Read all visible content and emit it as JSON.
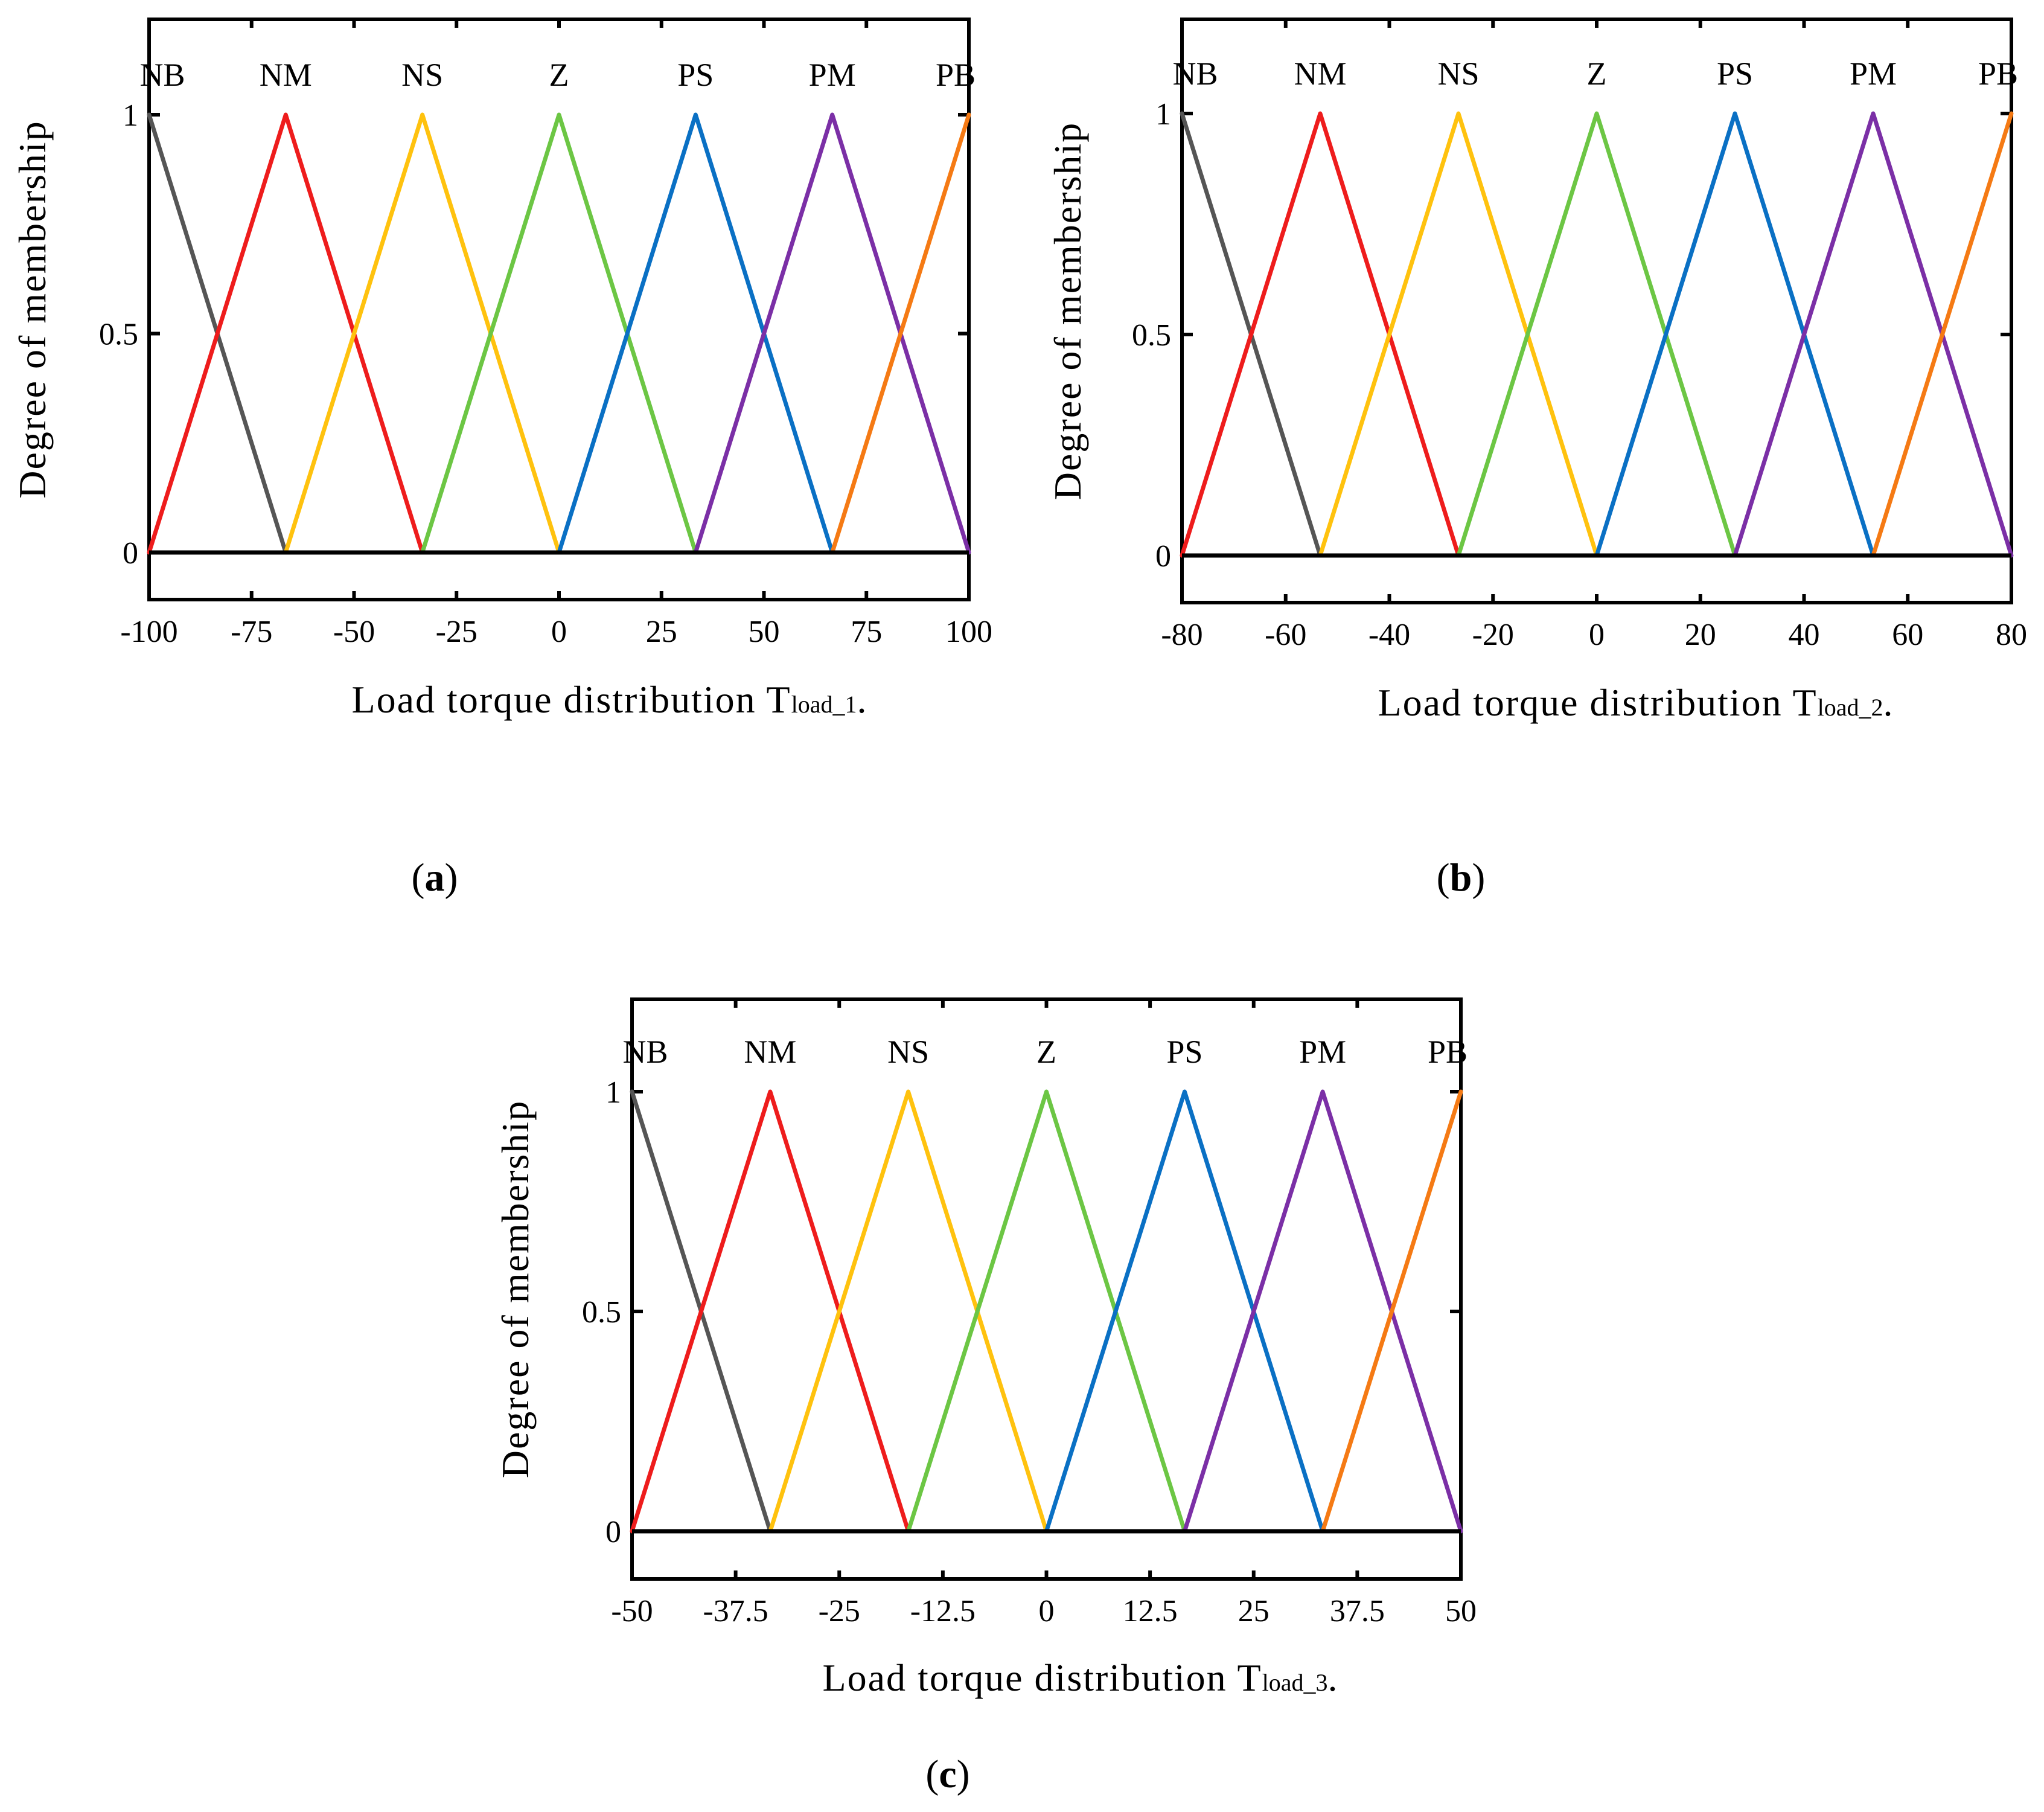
{
  "colors": {
    "NB": "#555555",
    "NM": "#ee1c1c",
    "NS": "#ffc20e",
    "Z": "#6cc644",
    "PS": "#0a70c4",
    "PM": "#7b2fa6",
    "PB": "#f57a14"
  },
  "chart_data": [
    {
      "id": "a",
      "type": "line",
      "caption": {
        "open": "(",
        "letter": "a",
        "close": ")"
      },
      "xlabel": "Load torque distribution T",
      "xlabel_sub": "load_1",
      "xlabel_suffix": ".",
      "ylabel": "Degree of membership",
      "xlim": [
        -100,
        100
      ],
      "ylim": [
        -0.11,
        1.22
      ],
      "xticks": [
        -100,
        -75,
        -50,
        -25,
        0,
        25,
        50,
        75,
        100
      ],
      "xtick_labels": [
        "-100",
        "-75",
        "-50",
        "-25",
        "0",
        "25",
        "50",
        "75",
        "100"
      ],
      "yticks": [
        0,
        0.5,
        1
      ],
      "ytick_labels": [
        "0",
        "0.5",
        "1"
      ],
      "terms": [
        "NB",
        "NM",
        "NS",
        "Z",
        "PS",
        "PM",
        "PB"
      ],
      "term_centers": [
        -100,
        -66.67,
        -33.33,
        0,
        33.33,
        66.67,
        100
      ],
      "series": [
        {
          "name": "NB",
          "x": [
            -100,
            -66.67
          ],
          "y": [
            1,
            0
          ]
        },
        {
          "name": "NM",
          "x": [
            -100,
            -66.67,
            -33.33
          ],
          "y": [
            0,
            1,
            0
          ]
        },
        {
          "name": "NS",
          "x": [
            -66.67,
            -33.33,
            0
          ],
          "y": [
            0,
            1,
            0
          ]
        },
        {
          "name": "Z",
          "x": [
            -33.33,
            0,
            33.33
          ],
          "y": [
            0,
            1,
            0
          ]
        },
        {
          "name": "PS",
          "x": [
            0,
            33.33,
            66.67
          ],
          "y": [
            0,
            1,
            0
          ]
        },
        {
          "name": "PM",
          "x": [
            33.33,
            66.67,
            100
          ],
          "y": [
            0,
            1,
            0
          ]
        },
        {
          "name": "PB",
          "x": [
            66.67,
            100
          ],
          "y": [
            0,
            1
          ]
        }
      ]
    },
    {
      "id": "b",
      "type": "line",
      "caption": {
        "open": "(",
        "letter": "b",
        "close": ")"
      },
      "xlabel": "Load torque distribution T",
      "xlabel_sub": "load_2",
      "xlabel_suffix": ".",
      "ylabel": "Degree of membership",
      "xlim": [
        -80,
        80
      ],
      "ylim": [
        -0.11,
        1.22
      ],
      "xticks": [
        -80,
        -60,
        -40,
        -20,
        0,
        20,
        40,
        60,
        80
      ],
      "xtick_labels": [
        "-80",
        "-60",
        "-40",
        "-20",
        "0",
        "20",
        "40",
        "60",
        "80"
      ],
      "yticks": [
        0,
        0.5,
        1
      ],
      "ytick_labels": [
        "0",
        "0.5",
        "1"
      ],
      "terms": [
        "NB",
        "NM",
        "NS",
        "Z",
        "PS",
        "PM",
        "PB"
      ],
      "term_centers": [
        -80,
        -53.33,
        -26.67,
        0,
        26.67,
        53.33,
        80
      ],
      "series": [
        {
          "name": "NB",
          "x": [
            -80,
            -53.33
          ],
          "y": [
            1,
            0
          ]
        },
        {
          "name": "NM",
          "x": [
            -80,
            -53.33,
            -26.67
          ],
          "y": [
            0,
            1,
            0
          ]
        },
        {
          "name": "NS",
          "x": [
            -53.33,
            -26.67,
            0
          ],
          "y": [
            0,
            1,
            0
          ]
        },
        {
          "name": "Z",
          "x": [
            -26.67,
            0,
            26.67
          ],
          "y": [
            0,
            1,
            0
          ]
        },
        {
          "name": "PS",
          "x": [
            0,
            26.67,
            53.33
          ],
          "y": [
            0,
            1,
            0
          ]
        },
        {
          "name": "PM",
          "x": [
            26.67,
            53.33,
            80
          ],
          "y": [
            0,
            1,
            0
          ]
        },
        {
          "name": "PB",
          "x": [
            53.33,
            80
          ],
          "y": [
            0,
            1
          ]
        }
      ]
    },
    {
      "id": "c",
      "type": "line",
      "caption": {
        "open": "(",
        "letter": "c",
        "close": ")"
      },
      "xlabel": "Load torque distribution T",
      "xlabel_sub": "load_3",
      "xlabel_suffix": ".",
      "ylabel": "Degree of membership",
      "xlim": [
        -50,
        50
      ],
      "ylim": [
        -0.11,
        1.22
      ],
      "xticks": [
        -50,
        -37.5,
        -25,
        -12.5,
        0,
        12.5,
        25,
        37.5,
        50
      ],
      "xtick_labels": [
        "-50",
        "-37.5",
        "-25",
        "-12.5",
        "0",
        "12.5",
        "25",
        "37.5",
        "50"
      ],
      "yticks": [
        0,
        0.5,
        1
      ],
      "ytick_labels": [
        "0",
        "0.5",
        "1"
      ],
      "terms": [
        "NB",
        "NM",
        "NS",
        "Z",
        "PS",
        "PM",
        "PB"
      ],
      "term_centers": [
        -50,
        -33.33,
        -16.67,
        0,
        16.67,
        33.33,
        50
      ],
      "series": [
        {
          "name": "NB",
          "x": [
            -50,
            -33.33
          ],
          "y": [
            1,
            0
          ]
        },
        {
          "name": "NM",
          "x": [
            -50,
            -33.33,
            -16.67
          ],
          "y": [
            0,
            1,
            0
          ]
        },
        {
          "name": "NS",
          "x": [
            -33.33,
            -16.67,
            0
          ],
          "y": [
            0,
            1,
            0
          ]
        },
        {
          "name": "Z",
          "x": [
            -16.67,
            0,
            16.67
          ],
          "y": [
            0,
            1,
            0
          ]
        },
        {
          "name": "PS",
          "x": [
            0,
            16.67,
            33.33
          ],
          "y": [
            0,
            1,
            0
          ]
        },
        {
          "name": "PM",
          "x": [
            16.67,
            33.33,
            50
          ],
          "y": [
            0,
            1,
            0
          ]
        },
        {
          "name": "PB",
          "x": [
            33.33,
            50
          ],
          "y": [
            0,
            1
          ]
        }
      ]
    }
  ]
}
